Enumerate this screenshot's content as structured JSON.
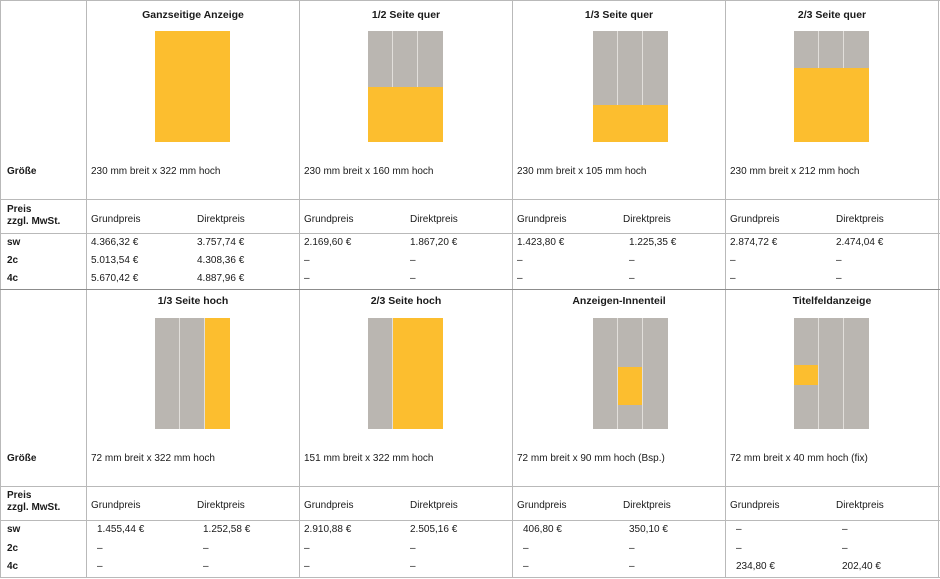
{
  "colors": {
    "ad": "#fcbe2f",
    "page": "#bab6b1"
  },
  "labels": {
    "size": "Größe",
    "price_line1": "Preis",
    "price_line2": "zzgl. MwSt.",
    "sw": "sw",
    "c2": "2c",
    "c4": "4c",
    "grund": "Grundpreis",
    "direkt": "Direktpreis"
  },
  "top": [
    {
      "title": "Ganzseitige Anzeige",
      "size": "230 mm breit x 322 mm hoch",
      "sw": [
        "4.366,32 €",
        "3.757,74 €"
      ],
      "c2": [
        "5.013,54 €",
        "4.308,36 €"
      ],
      "c4": [
        "5.670,42 €",
        "4.887,96 €"
      ]
    },
    {
      "title": "1/2 Seite quer",
      "size": "230 mm breit x 160 mm hoch",
      "sw": [
        "2.169,60 €",
        "1.867,20 €"
      ],
      "c2": [
        "–",
        "–"
      ],
      "c4": [
        "–",
        "–"
      ]
    },
    {
      "title": "1/3 Seite quer",
      "size": "230 mm breit x 105 mm hoch",
      "sw": [
        "1.423,80 €",
        "1.225,35 €"
      ],
      "c2": [
        "–",
        "–"
      ],
      "c4": [
        "–",
        "–"
      ]
    },
    {
      "title": "2/3 Seite quer",
      "size": "230 mm breit x 212 mm hoch",
      "sw": [
        "2.874,72 €",
        "2.474,04 €"
      ],
      "c2": [
        "–",
        "–"
      ],
      "c4": [
        "–",
        "–"
      ]
    }
  ],
  "bottom": [
    {
      "title": "1/3  Seite hoch",
      "size": "72 mm breit x 322 mm hoch",
      "sw": [
        "1.455,44 €",
        "1.252,58 €"
      ],
      "c2": [
        "–",
        "–"
      ],
      "c4": [
        "–",
        "–"
      ]
    },
    {
      "title": "2/3 Seite hoch",
      "size": "151 mm breit x 322 mm hoch",
      "sw": [
        "2.910,88 €",
        "2.505,16 €"
      ],
      "c2": [
        "–",
        "–"
      ],
      "c4": [
        "–",
        "–"
      ]
    },
    {
      "title": "Anzeigen-Innenteil",
      "size": "72 mm breit x 90 mm hoch (Bsp.)",
      "sw": [
        "406,80 €",
        "350,10 €"
      ],
      "c2": [
        "–",
        "–"
      ],
      "c4": [
        "–",
        "–"
      ]
    },
    {
      "title": "Titelfeldanzeige",
      "size": "72 mm breit x 40 mm hoch (fix)",
      "sw": [
        "–",
        "–"
      ],
      "c2": [
        "–",
        "–"
      ],
      "c4": [
        "234,80 €",
        "202,40 €"
      ]
    }
  ]
}
